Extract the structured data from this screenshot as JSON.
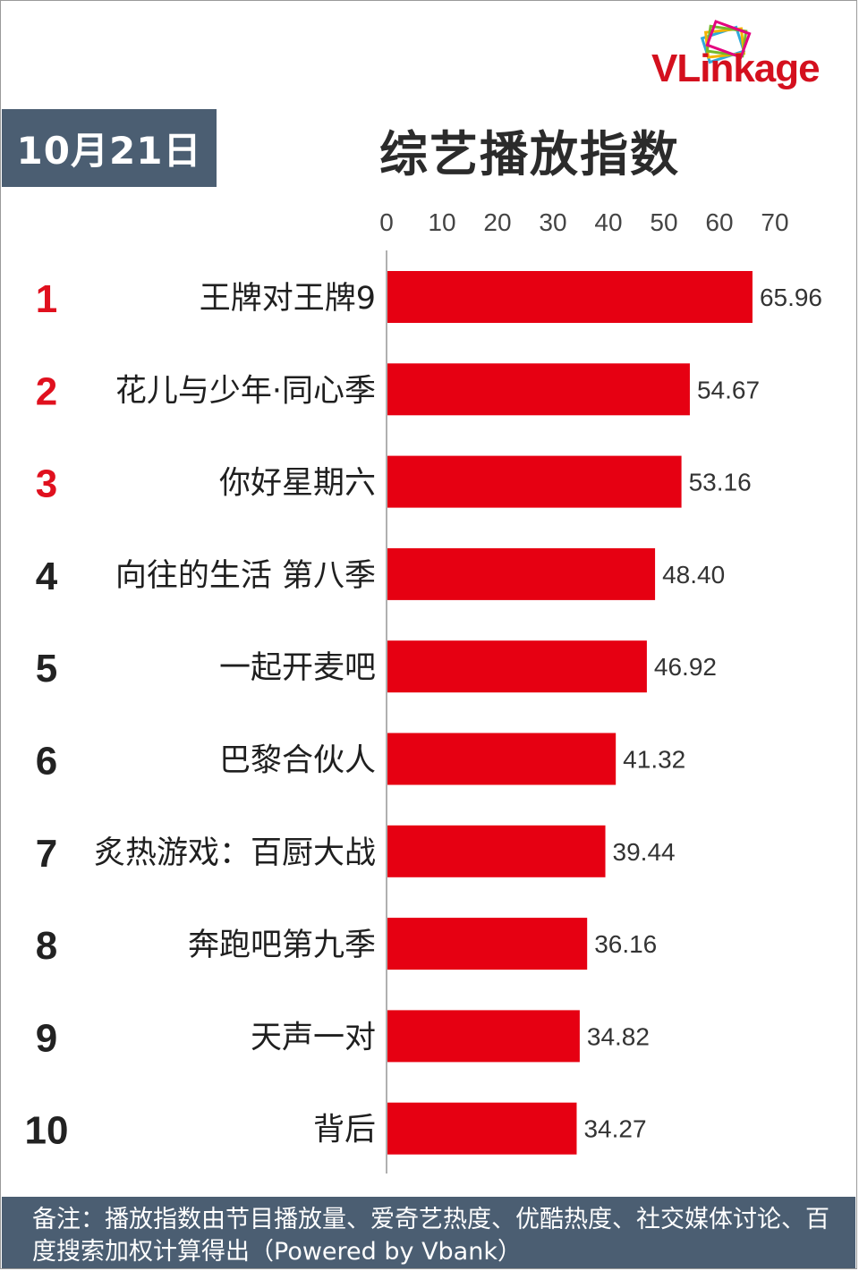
{
  "header": {
    "date_label": "10月21日",
    "title": "综艺播放指数",
    "logo_text": "VLinkage"
  },
  "colors": {
    "bar": "#e60012",
    "rank_top": "#e0101e",
    "rank_other": "#222222",
    "panel": "#4b5e72"
  },
  "chart_data": {
    "type": "bar",
    "orientation": "horizontal",
    "title": "综艺播放指数",
    "xlim": [
      0,
      70
    ],
    "ticks": [
      0,
      10,
      20,
      30,
      40,
      50,
      60,
      70
    ],
    "ranks": [
      "1",
      "2",
      "3",
      "4",
      "5",
      "6",
      "7",
      "8",
      "9",
      "10"
    ],
    "categories": [
      "王牌对王牌9",
      "花儿与少年·同心季",
      "你好星期六",
      "向往的生活 第八季",
      "一起开麦吧",
      "巴黎合伙人",
      "炙热游戏：百厨大战",
      "奔跑吧第九季",
      "天声一对",
      "背后"
    ],
    "values": [
      65.96,
      54.67,
      53.16,
      48.4,
      46.92,
      41.32,
      39.44,
      36.16,
      34.82,
      34.27
    ],
    "value_labels": [
      "65.96",
      "54.67",
      "53.16",
      "48.40",
      "46.92",
      "41.32",
      "39.44",
      "36.16",
      "34.82",
      "34.27"
    ],
    "grid": false,
    "legend": "none"
  },
  "footer": {
    "note": "备注：播放指数由节目播放量、爱奇艺热度、优酷热度、社交媒体讨论、百度搜索加权计算得出（Powered by Vbank）"
  }
}
